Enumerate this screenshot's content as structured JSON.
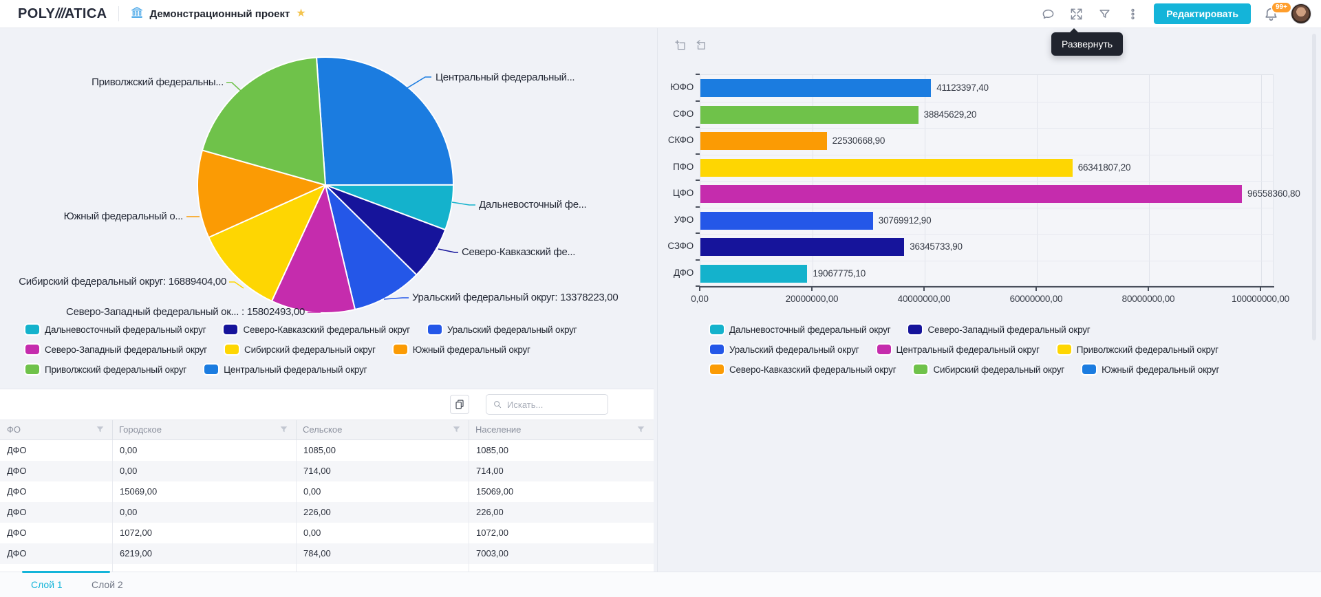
{
  "header": {
    "logo": {
      "poly": "POLY",
      "slashes": "///",
      "atica": "ATICA"
    },
    "project_title": "Демонстрационный проект",
    "edit_button_label": "Редактировать",
    "notifications_badge": "99+"
  },
  "tooltip": {
    "label": "Развернуть"
  },
  "icons": {
    "header": [
      "bank-icon",
      "star-icon",
      "comments-icon",
      "expand-icon",
      "filter-icon",
      "more-icon",
      "bell-icon",
      "avatar"
    ],
    "bar_panel": [
      "area-select-icon",
      "undo-icon"
    ],
    "table_toolbar": [
      "copy-icon",
      "search-icon"
    ],
    "table_header": "filter-funnel-icon"
  },
  "colors": {
    "accent": "#14b4d9",
    "badge": "#ff9e2c",
    "background": "#f0f2f7",
    "tooltip_bg": "#20242e",
    "tab_active": "#14b4d9"
  },
  "chart_data": [
    {
      "type": "pie",
      "title": "",
      "slices": [
        {
          "name": "Центральный федеральный округ",
          "label": "Центральный федеральный...",
          "percent_est": 26.1,
          "color": "#1b7ce0"
        },
        {
          "name": "Дальневосточный федеральный округ",
          "label": "Дальневосточный фе...",
          "percent_est": 5.7,
          "color": "#14b2cc"
        },
        {
          "name": "Северо-Кавказский федеральный округ",
          "label": "Северо-Кавказский фе...",
          "percent_est": 6.7,
          "color": "#16149b"
        },
        {
          "name": "Уральский федеральный округ",
          "label": "Уральский федеральный округ: 13378223,00",
          "value": 13378223.0,
          "percent_est": 8.9,
          "color": "#2457e8"
        },
        {
          "name": "Северо-Западный федеральный округ",
          "label": "Северо-Западный федеральный ок... : 15802493,00",
          "value": 15802493.0,
          "percent_est": 10.6,
          "color": "#c52cad"
        },
        {
          "name": "Сибирский федеральный округ",
          "label": "Сибирский федеральный округ: 16889404,00",
          "value": 16889404.0,
          "percent_est": 11.4,
          "color": "#fed602"
        },
        {
          "name": "Южный федеральный округ",
          "label": "Южный федеральный о...",
          "percent_est": 11.1,
          "color": "#fb9b04"
        },
        {
          "name": "Приволжский федеральный округ",
          "label": "Приволжский федеральны...",
          "percent_est": 19.5,
          "color": "#6fc24a"
        }
      ],
      "legend_rows": [
        [
          {
            "label": "Дальневосточный федеральный округ",
            "color": "#14b2cc"
          },
          {
            "label": "Северо-Кавказский федеральный округ",
            "color": "#16149b"
          },
          {
            "label": "Уральский федеральный округ",
            "color": "#2457e8"
          }
        ],
        [
          {
            "label": "Северо-Западный федеральный округ",
            "color": "#c52cad"
          },
          {
            "label": "Сибирский федеральный округ",
            "color": "#fed602"
          },
          {
            "label": "Южный федеральный округ",
            "color": "#fb9b04"
          }
        ],
        [
          {
            "label": "Приволжский федеральный округ",
            "color": "#6fc24a"
          },
          {
            "label": "Центральный федеральный округ",
            "color": "#1b7ce0"
          }
        ]
      ]
    },
    {
      "type": "bar",
      "orientation": "horizontal",
      "categories": [
        "ЮФО",
        "СФО",
        "СКФО",
        "ПФО",
        "ЦФО",
        "УФО",
        "СЗФО",
        "ДФО"
      ],
      "values": [
        41123397.4,
        38845629.2,
        22530668.9,
        66341807.2,
        96558360.8,
        30769912.9,
        36345733.9,
        19067775.1
      ],
      "value_labels": [
        "41123397,40",
        "38845629,20",
        "22530668,90",
        "66341807,20",
        "96558360,80",
        "30769912,90",
        "36345733,90",
        "19067775,10"
      ],
      "bar_colors": [
        "#1b7ce0",
        "#6fc24a",
        "#fb9b04",
        "#fed602",
        "#c52cad",
        "#2457e8",
        "#16149b",
        "#14b2cc"
      ],
      "x_tick_labels": [
        "0,00",
        "20000000,00",
        "40000000,00",
        "60000000,00",
        "80000000,00",
        "100000000,00"
      ],
      "x_tick_values": [
        0,
        20000000,
        40000000,
        60000000,
        80000000,
        100000000
      ],
      "xlim": [
        0,
        102300000
      ],
      "grid": true,
      "legend_position": "bottom",
      "legend_rows": [
        [
          {
            "label": "Дальневосточный федеральный округ",
            "color": "#14b2cc"
          },
          {
            "label": "Северо-Западный федеральный округ",
            "color": "#16149b"
          }
        ],
        [
          {
            "label": "Уральский федеральный округ",
            "color": "#2457e8"
          },
          {
            "label": "Центральный федеральный округ",
            "color": "#c52cad"
          },
          {
            "label": "Приволжский федеральный округ",
            "color": "#fed602"
          }
        ],
        [
          {
            "label": "Северо-Кавказский федеральный округ",
            "color": "#fb9b04"
          },
          {
            "label": "Сибирский федеральный округ",
            "color": "#6fc24a"
          },
          {
            "label": "Южный федеральный округ",
            "color": "#1b7ce0"
          }
        ]
      ]
    }
  ],
  "table": {
    "search_placeholder": "Искать...",
    "columns": [
      "ФО",
      "Городское",
      "Сельское",
      "Население"
    ],
    "rows": [
      [
        "ДФО",
        "0,00",
        "1085,00",
        "1085,00"
      ],
      [
        "ДФО",
        "0,00",
        "714,00",
        "714,00"
      ],
      [
        "ДФО",
        "15069,00",
        "0,00",
        "15069,00"
      ],
      [
        "ДФО",
        "0,00",
        "226,00",
        "226,00"
      ],
      [
        "ДФО",
        "1072,00",
        "0,00",
        "1072,00"
      ],
      [
        "ДФО",
        "6219,00",
        "784,00",
        "7003,00"
      ]
    ]
  },
  "footer_tabs": [
    {
      "label": "Слой 1",
      "active": true
    },
    {
      "label": "Слой 2",
      "active": false
    }
  ]
}
